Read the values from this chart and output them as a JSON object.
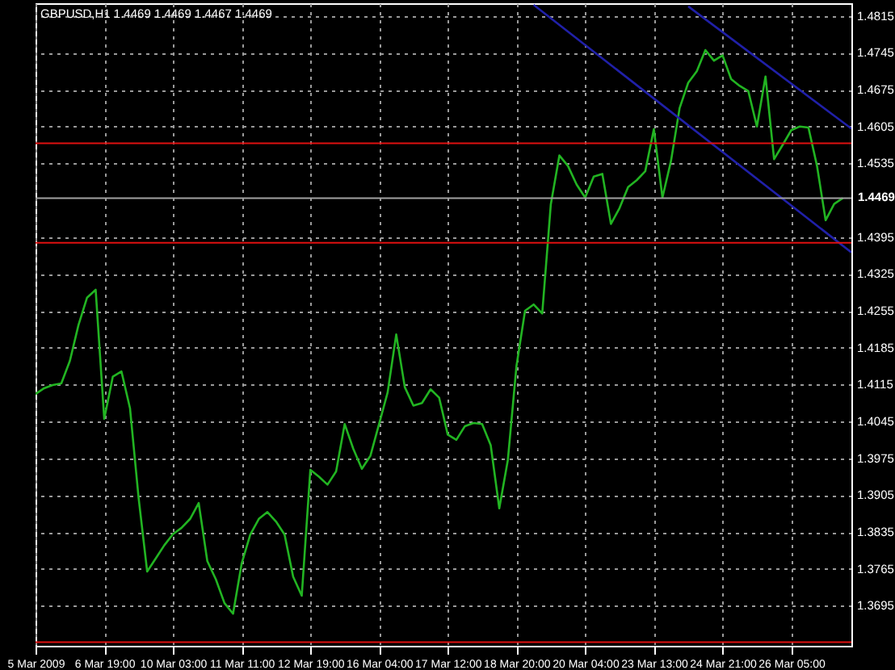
{
  "chart_data": {
    "type": "line",
    "title": "GBPUSD,H1  1.4469 1.4469 1.4467 1.4469",
    "categories": [
      "5 Mar 2009",
      null,
      null,
      null,
      null,
      null,
      null,
      null,
      "6 Mar 19:00",
      null,
      null,
      null,
      null,
      null,
      null,
      null,
      "10 Mar 03:00",
      null,
      null,
      null,
      null,
      null,
      null,
      null,
      "11 Mar 11:00",
      null,
      null,
      null,
      null,
      null,
      null,
      null,
      "12 Mar 19:00",
      null,
      null,
      null,
      null,
      null,
      null,
      null,
      "16 Mar 04:00",
      null,
      null,
      null,
      null,
      null,
      null,
      null,
      "17 Mar 12:00",
      null,
      null,
      null,
      null,
      null,
      null,
      null,
      "18 Mar 20:00",
      null,
      null,
      null,
      null,
      null,
      null,
      null,
      "20 Mar 04:00",
      null,
      null,
      null,
      null,
      null,
      null,
      null,
      "23 Mar 13:00",
      null,
      null,
      null,
      null,
      null,
      null,
      null,
      "24 Mar 21:00",
      null,
      null,
      null,
      null,
      null,
      null,
      null,
      "26 Mar 05:00",
      null,
      null,
      null,
      null,
      null,
      null,
      null
    ],
    "series": [
      {
        "color": "#22b422",
        "values": [
          1.4097,
          1.4108,
          1.4114,
          1.4117,
          1.416,
          1.4228,
          1.428,
          1.4295,
          1.405,
          1.413,
          1.414,
          1.407,
          1.39,
          1.376,
          1.3785,
          1.381,
          1.3831,
          1.3843,
          1.386,
          1.389,
          1.378,
          1.3745,
          1.37,
          1.368,
          1.3775,
          1.383,
          1.386,
          1.3873,
          1.3855,
          1.383,
          1.375,
          1.3714,
          1.3953,
          1.394,
          1.3925,
          1.395,
          1.404,
          1.3993,
          1.3955,
          1.398,
          1.404,
          1.41,
          1.421,
          1.411,
          1.4075,
          1.408,
          1.4106,
          1.409,
          1.402,
          1.401,
          1.4036,
          1.4042,
          1.404,
          1.4,
          1.388,
          1.3972,
          1.415,
          1.4255,
          1.4267,
          1.425,
          1.4457,
          1.455,
          1.453,
          1.4495,
          1.447,
          1.451,
          1.4515,
          1.442,
          1.445,
          1.449,
          1.4503,
          1.452,
          1.46,
          1.447,
          1.454,
          1.464,
          1.4688,
          1.471,
          1.475,
          1.473,
          1.474,
          1.4695,
          1.4682,
          1.4672,
          1.4605,
          1.47,
          1.4543,
          1.457,
          1.4598,
          1.4605,
          1.4603,
          1.453,
          1.4427,
          1.4458,
          1.4469,
          null
        ]
      },
      {
        "color": "#2020a8",
        "values": [
          null,
          null,
          null,
          null,
          null,
          null,
          null,
          null,
          null,
          null,
          null,
          null,
          null,
          null,
          null,
          null,
          null,
          null,
          null,
          null,
          null,
          null,
          null,
          null,
          null,
          null,
          null,
          null,
          null,
          null,
          null,
          null,
          null,
          null,
          null,
          null,
          null,
          null,
          null,
          null,
          null,
          null,
          null,
          null,
          null,
          null,
          null,
          null,
          null,
          null,
          null,
          null,
          null,
          null,
          null,
          null,
          null,
          null,
          null,
          null,
          null,
          null,
          null,
          null,
          null,
          null,
          null,
          null,
          null,
          null,
          null,
          null,
          null,
          null,
          null,
          null,
          1.4833,
          null,
          null,
          null,
          null,
          null,
          null,
          null,
          null,
          null,
          null,
          null,
          null,
          null,
          null,
          null,
          null,
          null,
          null,
          1.4601
        ]
      },
      {
        "color": "#2020a8",
        "values": [
          null,
          null,
          null,
          null,
          null,
          null,
          null,
          null,
          null,
          null,
          null,
          null,
          null,
          null,
          null,
          null,
          null,
          null,
          null,
          null,
          null,
          null,
          null,
          null,
          null,
          null,
          null,
          null,
          null,
          null,
          null,
          null,
          null,
          null,
          null,
          null,
          null,
          null,
          null,
          null,
          null,
          null,
          null,
          null,
          null,
          null,
          null,
          null,
          null,
          null,
          null,
          null,
          null,
          null,
          null,
          null,
          null,
          null,
          1.4836,
          null,
          null,
          null,
          null,
          null,
          null,
          null,
          null,
          null,
          null,
          null,
          null,
          null,
          null,
          null,
          null,
          null,
          null,
          null,
          null,
          null,
          null,
          null,
          null,
          null,
          null,
          null,
          null,
          null,
          null,
          null,
          null,
          null,
          null,
          null,
          null,
          1.4366
        ]
      }
    ],
    "ylim": [
      1.3619,
      1.4839
    ],
    "yticks": [
      1.4815,
      1.4745,
      1.4675,
      1.4605,
      1.4535,
      1.4395,
      1.4325,
      1.4255,
      1.4185,
      1.4115,
      1.4045,
      1.3975,
      1.3905,
      1.3835,
      1.3765,
      1.3695
    ],
    "ref_lines": [
      {
        "axis": "y",
        "value": 1.4573,
        "color": "#e01010"
      },
      {
        "axis": "y",
        "value": 1.4469,
        "color": "#a0a0a0",
        "label": "1.4469"
      },
      {
        "axis": "y",
        "value": 1.4384,
        "color": "#e01010"
      },
      {
        "axis": "y",
        "value": 1.3626,
        "color": "#e01010"
      }
    ],
    "grid": true,
    "line_style": "solid"
  }
}
